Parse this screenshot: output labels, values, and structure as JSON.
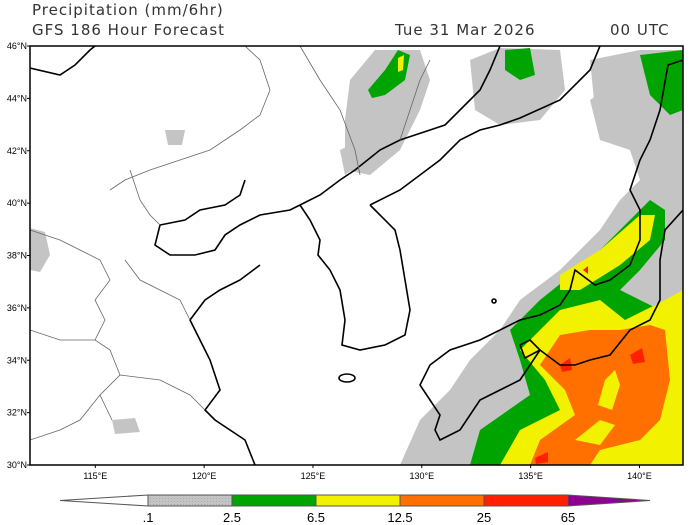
{
  "header": {
    "title": "Precipitation (mm/6hr)",
    "subtitle": "GFS 186 Hour Forecast",
    "valid_date": "Tue 31 Mar 2026",
    "valid_time": "00 UTC"
  },
  "map": {
    "lon_range": [
      112,
      142
    ],
    "lat_range": [
      30,
      46
    ],
    "lat_ticks": [
      {
        "value": 46,
        "label": "46°N"
      },
      {
        "value": 44,
        "label": "44°N"
      },
      {
        "value": 42,
        "label": "42°N"
      },
      {
        "value": 40,
        "label": "40°N"
      },
      {
        "value": 38,
        "label": "38°N"
      },
      {
        "value": 36,
        "label": "36°N"
      },
      {
        "value": 34,
        "label": "34°N"
      },
      {
        "value": 32,
        "label": "32°N"
      },
      {
        "value": 30,
        "label": "30°N"
      }
    ],
    "lon_ticks": [
      {
        "value": 115,
        "label": "115°E"
      },
      {
        "value": 120,
        "label": "120°E"
      },
      {
        "value": 125,
        "label": "125°E"
      },
      {
        "value": 130,
        "label": "130°E"
      },
      {
        "value": 135,
        "label": "135°E"
      },
      {
        "value": 140,
        "label": "140°E"
      }
    ]
  },
  "colorbar": {
    "levels": [
      ".1",
      "2.5",
      "6.5",
      "12.5",
      "25",
      "65"
    ],
    "colors": [
      "#ffffff",
      "#c4c4c4",
      "#00a400",
      "#f2f200",
      "#ff7000",
      "#ff2000",
      "#900090"
    ]
  }
}
